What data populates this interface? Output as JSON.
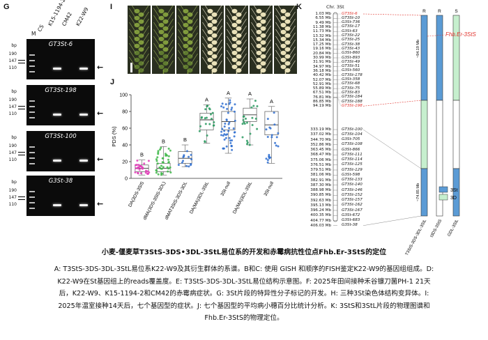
{
  "panel_labels": {
    "g": "G",
    "i": "I",
    "j": "J",
    "k": "K"
  },
  "gel": {
    "lane_labels": [
      "M",
      "CS",
      "K15-1194-2",
      "CM42",
      "K22-W9"
    ],
    "bp_header": "bp",
    "bp_values": [
      "190",
      "147",
      "110"
    ],
    "arrow": "←",
    "panels": [
      {
        "title": "GT3St-6",
        "bands": [
          2,
          4
        ]
      },
      {
        "title": "GT3St-198",
        "bands": [
          2,
          4
        ]
      },
      {
        "title": "GT3St-100",
        "bands": [
          2,
          4
        ]
      },
      {
        "title": "G3St-38",
        "bands": [
          2,
          4
        ]
      }
    ]
  },
  "chart_data": {
    "type": "box",
    "ylabel": "PDS (%)",
    "ylim": [
      0,
      100
    ],
    "yticks": [
      "0",
      "20",
      "40",
      "60",
      "80",
      "100"
    ],
    "categories": [
      "DA(3DS-3SlS",
      "dMA(3DS-3SlS-3DL)",
      "dMAT3StS-3DS-3DL",
      "DA(MA)3DL-3StL",
      "3St-null",
      "DA(MA)3DL-3StL",
      "3St-null"
    ],
    "colors": [
      "#e23cb8",
      "#3fb84a",
      "#2f6fd0",
      "#2a9a60",
      "#2f6fd0",
      "#2a9a60",
      "#2f6fd0"
    ],
    "letters": [
      "B",
      "B",
      "B",
      "A",
      "A",
      "A",
      "A"
    ],
    "boxes": [
      {
        "q1": 8,
        "med": 12,
        "q3": 16,
        "lo": 4,
        "hi": 22
      },
      {
        "q1": 8,
        "med": 12,
        "q3": 18,
        "lo": 4,
        "hi": 38
      },
      {
        "q1": 18,
        "med": 24,
        "q3": 32,
        "lo": 14,
        "hi": 40
      },
      {
        "q1": 58,
        "med": 70,
        "q3": 78,
        "lo": 42,
        "hi": 88
      },
      {
        "q1": 58,
        "med": 68,
        "q3": 80,
        "lo": 30,
        "hi": 96
      },
      {
        "q1": 68,
        "med": 76,
        "q3": 84,
        "lo": 40,
        "hi": 95
      },
      {
        "q1": 52,
        "med": 64,
        "q3": 80,
        "lo": 18,
        "hi": 86
      }
    ]
  },
  "physmap": {
    "chr_label": "Chr. 3St",
    "top_markers": [
      {
        "mb": "1.03 Mb",
        "name": "GT3St-6",
        "red": true
      },
      {
        "mb": "6.55 Mb",
        "name": "GT3St-10"
      },
      {
        "mb": "9.49 Mb",
        "name": "G3St-736"
      },
      {
        "mb": "11.38 Mb",
        "name": "GT3St-17"
      },
      {
        "mb": "11.73 Mb",
        "name": "G3St-63"
      },
      {
        "mb": "13.32 Mb",
        "name": "GT3St-22"
      },
      {
        "mb": "15.34 Mb",
        "name": "GT3St-25"
      },
      {
        "mb": "17.25 Mb",
        "name": "GT3St-38"
      },
      {
        "mb": "19.16 Mb",
        "name": "GT3St-43"
      },
      {
        "mb": "20.84 Mb",
        "name": "G3St-860"
      },
      {
        "mb": "30.99 Mb",
        "name": "G3St-893"
      },
      {
        "mb": "31.91 Mb",
        "name": "GT3St-49"
      },
      {
        "mb": "34.97 Mb",
        "name": "GT3St-51"
      },
      {
        "mb": "36.18 Mb",
        "name": "G3St-560"
      },
      {
        "mb": "40.42 Mb",
        "name": "GT3St-178"
      },
      {
        "mb": "52.07 Mb",
        "name": "G3St-358"
      },
      {
        "mb": "52.91 Mb",
        "name": "GT3St-68"
      },
      {
        "mb": "55.89 Mb",
        "name": "GT3St-75"
      },
      {
        "mb": "67.51 Mb",
        "name": "GT3St-83"
      },
      {
        "mb": "76.81 Mb",
        "name": "GT3St-184"
      },
      {
        "mb": "86.85 Mb",
        "name": "GT3St-188"
      },
      {
        "mb": "94.19 Mb",
        "name": "GT3St-198",
        "red": true
      }
    ],
    "bottom_markers": [
      {
        "mb": "333.19 Mb",
        "name": "GT3St-100"
      },
      {
        "mb": "337.02 Mb",
        "name": "GT3St-104"
      },
      {
        "mb": "344.70 Mb",
        "name": "G3St-705"
      },
      {
        "mb": "352.86 Mb",
        "name": "GT3St-108"
      },
      {
        "mb": "363.45 Mb",
        "name": "G3St-866"
      },
      {
        "mb": "368.47 Mb",
        "name": "GT3St-111"
      },
      {
        "mb": "375.06 Mb",
        "name": "GT3St-114"
      },
      {
        "mb": "376.51 Mb",
        "name": "GT3St-125"
      },
      {
        "mb": "379.51 Mb",
        "name": "GT3St-129"
      },
      {
        "mb": "381.06 Mb",
        "name": "G3St-598"
      },
      {
        "mb": "382.91 Mb",
        "name": "GT3St-133"
      },
      {
        "mb": "387.30 Mb",
        "name": "GT3St-140"
      },
      {
        "mb": "388.98 Mb",
        "name": "GT3St-146"
      },
      {
        "mb": "390.85 Mb",
        "name": "GT3St-152"
      },
      {
        "mb": "392.63 Mb",
        "name": "GT3St-157"
      },
      {
        "mb": "395.13 Mb",
        "name": "GT3St-162"
      },
      {
        "mb": "396.24 Mb",
        "name": "GT3St-167"
      },
      {
        "mb": "400.35 Mb",
        "name": "G3St-672"
      },
      {
        "mb": "404.77 Mb",
        "name": "G3St-683"
      },
      {
        "mb": "406.03 Mb",
        "name": "G3St-38"
      }
    ],
    "col_headers": [
      "R",
      "R",
      "S"
    ],
    "span_top": "~94.19 Mb",
    "span_bottom": "~74.85 Mb",
    "gene_label": "Fhb.Er-3StS",
    "line_labels": [
      "T3StS-3DS-3DL-3StL",
      "t3DS-3StS",
      "GDL-3StL"
    ],
    "legend": [
      {
        "label": "3St",
        "color": "#5b9bd5"
      },
      {
        "label": "3D",
        "color": "#c6efce"
      }
    ]
  },
  "caption": {
    "title": "小麦-偃麦草T3StS-3DS•3DL-3StL易位系的开发和赤霉病抗性位点Fhb.Er-3StS的定位",
    "lines": [
      "A: T3StS-3DS-3DL-3StL易位系K22-W9及其衍生群体的系谱。B和C: 使用 GISH 和顺序的FISH鉴定K22-W9的基因组组成。D:",
      "K22-W9在St基因组上的reads覆盖度。E: T3StS-3DS-3DL-3StL易位结构示意图。F: 2025年田间接种禾谷镰刀菌PH-1 21天",
      "后，K22-W9、K15-1194-2和CM42的赤霉病症状。G: 3St片段的特异性分子标记的开发。H: 三种3St染色体结构变异体。I:",
      "2025年温室接种14天后，七个基因型的症状。J: 七个基因型的平均病小穗百分比统计分析。K: 3StS和3StL片段的物理图谱和",
      "Fhb.Er-3StS的物理定位。"
    ]
  }
}
